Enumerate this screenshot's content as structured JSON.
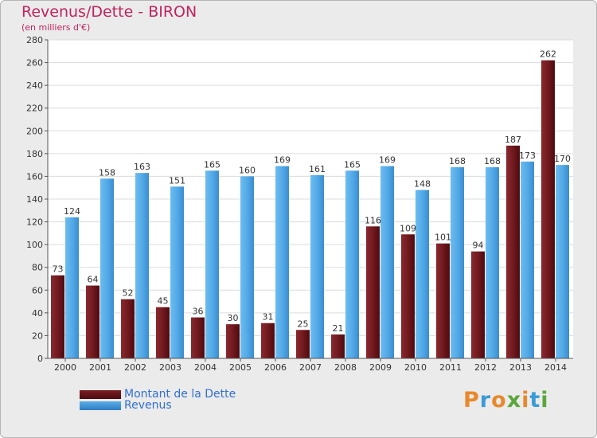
{
  "header": {
    "title": "Revenus/Dette - BIRON",
    "subtitle": "(en milliers d'€)"
  },
  "legend": {
    "debt_label": "Montant de la Dette",
    "revenue_label": "Revenus"
  },
  "logo": {
    "text": "Proxiti",
    "letters": [
      "P",
      "r",
      "o",
      "x",
      "i",
      "t",
      "i"
    ],
    "colors": [
      "#e8882c",
      "#3a9bd6",
      "#e8882c",
      "#5aa63c",
      "#e8882c",
      "#3a9bd6",
      "#5aa63c"
    ]
  },
  "colors": {
    "debt": "#7a1f24",
    "debt_dark": "#4e0a0e",
    "revenue": "#5aaee8",
    "revenue_dark": "#2f7cc2",
    "plot_bg": "#ffffff",
    "grid": "#dcdcdc"
  },
  "chart_data": {
    "type": "bar",
    "title": "Revenus/Dette - BIRON",
    "subtitle": "(en milliers d'€)",
    "categories": [
      "2000",
      "2001",
      "2002",
      "2003",
      "2004",
      "2005",
      "2006",
      "2007",
      "2008",
      "2009",
      "2010",
      "2011",
      "2012",
      "2013",
      "2014"
    ],
    "series": [
      {
        "name": "Montant de la Dette",
        "values": [
          73,
          64,
          52,
          45,
          36,
          30,
          31,
          25,
          21,
          116,
          109,
          101,
          94,
          187,
          262
        ]
      },
      {
        "name": "Revenus",
        "values": [
          124,
          158,
          163,
          151,
          165,
          160,
          169,
          161,
          165,
          169,
          148,
          168,
          168,
          173,
          170
        ]
      }
    ],
    "ylim": [
      0,
      280
    ],
    "yticks": [
      0,
      20,
      40,
      60,
      80,
      100,
      120,
      140,
      160,
      180,
      200,
      220,
      240,
      260,
      280
    ],
    "grid": true,
    "legend_position": "bottom-left"
  }
}
